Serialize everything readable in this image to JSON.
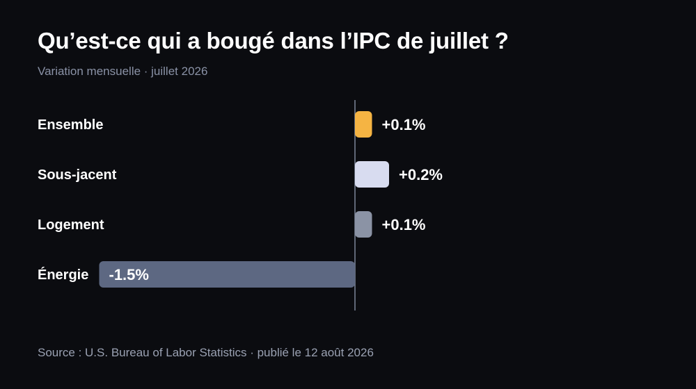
{
  "header": {
    "title": "Qu’est-ce qui a bougé dans l’IPC de juillet ?",
    "subtitle": "Variation mensuelle · juillet 2026"
  },
  "footer": {
    "source": "Source : U.S. Bureau of Labor Statistics · publié le 12 août 2026"
  },
  "chart_data": {
    "type": "bar",
    "orientation": "horizontal",
    "title": "Qu’est-ce qui a bougé dans l’IPC de juillet ?",
    "subtitle": "Variation mensuelle · juillet 2026",
    "categories": [
      "Ensemble",
      "Sous-jacent",
      "Logement",
      "Énergie"
    ],
    "values": [
      0.1,
      0.2,
      0.1,
      -1.5
    ],
    "value_labels": [
      "+0.1%",
      "+0.2%",
      "+0.1%",
      "-1.5%"
    ],
    "colors": [
      "#f5b443",
      "#d8dcf0",
      "#8b93a5",
      "#5d6882"
    ],
    "unit": "%",
    "xlim": [
      -1.5,
      0.6
    ],
    "grid": false,
    "legend": "none"
  }
}
